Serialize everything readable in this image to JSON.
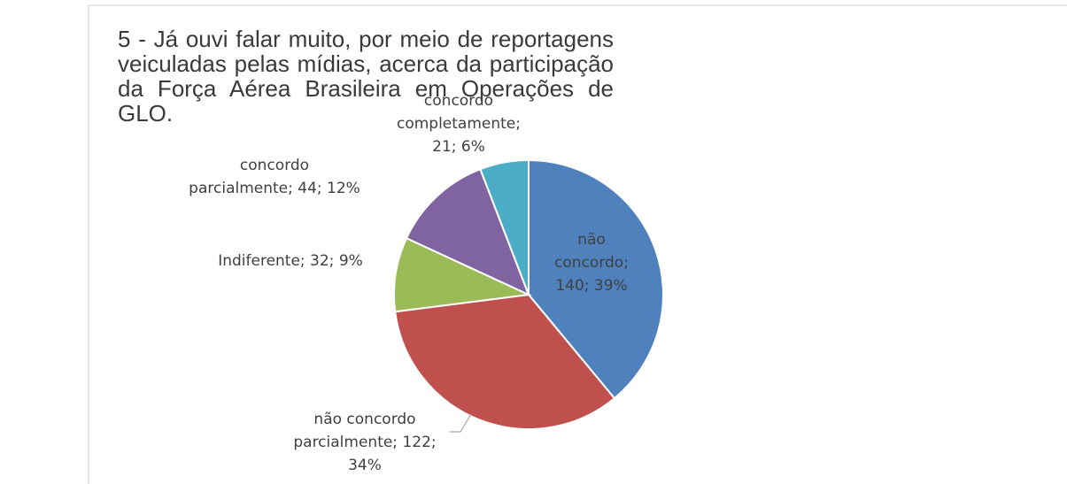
{
  "chart_data": {
    "type": "pie",
    "title": "5 - Já ouvi falar muito, por meio de reportagens veiculadas pelas mídias, acerca da participação da Força Aérea Brasileira em Operações de GLO.",
    "values": [
      140,
      122,
      32,
      44,
      21
    ],
    "value_labels": [
      "não concordo; 140; 39%",
      "não concordo parcialmente; 122; 34%",
      "Indiferente; 32; 9%",
      "concordo parcialmente; 44; 12%",
      "concordo completamente; 21; 6%"
    ],
    "colors": [
      "#4f81bd",
      "#c0504d",
      "#9bbb59",
      "#8064a2",
      "#4bacc6"
    ]
  }
}
